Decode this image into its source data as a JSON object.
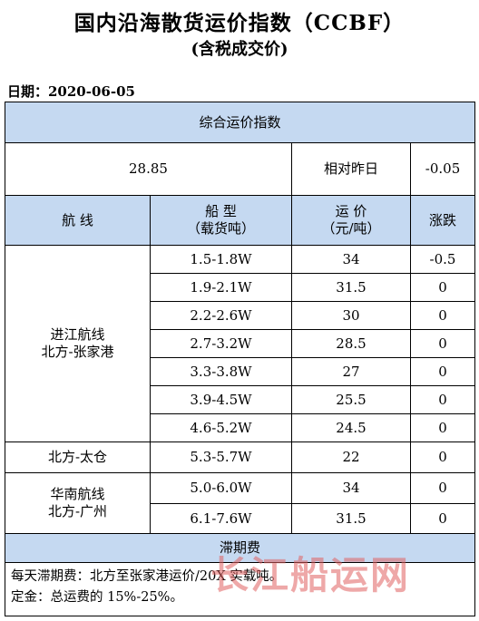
{
  "title": "国内沿海散货运价指数（CCBF）",
  "subtitle": "(含税成交价)",
  "date": "日期：2020-06-05",
  "composite": {
    "header": "综合运价指数",
    "value": "28.85",
    "relative_label": "相对昨日",
    "relative_value": "-0.05"
  },
  "columns": {
    "route": "航  线",
    "ship_type_line1": "船  型",
    "ship_type_line2": "（载货吨）",
    "price_line1": "运  价",
    "price_line2": "（元/吨）",
    "change": "涨跌"
  },
  "groups": [
    {
      "route_line1": "进江航线",
      "route_line2": "北方-张家港",
      "rows": [
        {
          "ship": "1.5-1.8W",
          "price": "34",
          "change": "-0.5"
        },
        {
          "ship": "1.9-2.1W",
          "price": "31.5",
          "change": "0"
        },
        {
          "ship": "2.2-2.6W",
          "price": "30",
          "change": "0"
        },
        {
          "ship": "2.7-3.2W",
          "price": "28.5",
          "change": "0"
        },
        {
          "ship": "3.3-3.8W",
          "price": "27",
          "change": "0"
        },
        {
          "ship": "3.9-4.5W",
          "price": "25.5",
          "change": "0"
        },
        {
          "ship": "4.6-5.2W",
          "price": "24.5",
          "change": "0"
        }
      ]
    },
    {
      "route_line1": "北方-太仓",
      "route_line2": "",
      "rows": [
        {
          "ship": "5.3-5.7W",
          "price": "22",
          "change": "0"
        }
      ]
    },
    {
      "route_line1": "华南航线",
      "route_line2": "北方-广州",
      "rows": [
        {
          "ship": "5.0-6.0W",
          "price": "34",
          "change": "0"
        },
        {
          "ship": "6.1-7.6W",
          "price": "31.5",
          "change": "0"
        }
      ]
    }
  ],
  "demurrage": {
    "header": "滞期费",
    "line1": "每天滞期费：北方至张家港运价/20X 实载吨。",
    "line2": "定金：总运费的 15%-25%。"
  },
  "watermark": "长江船运网"
}
